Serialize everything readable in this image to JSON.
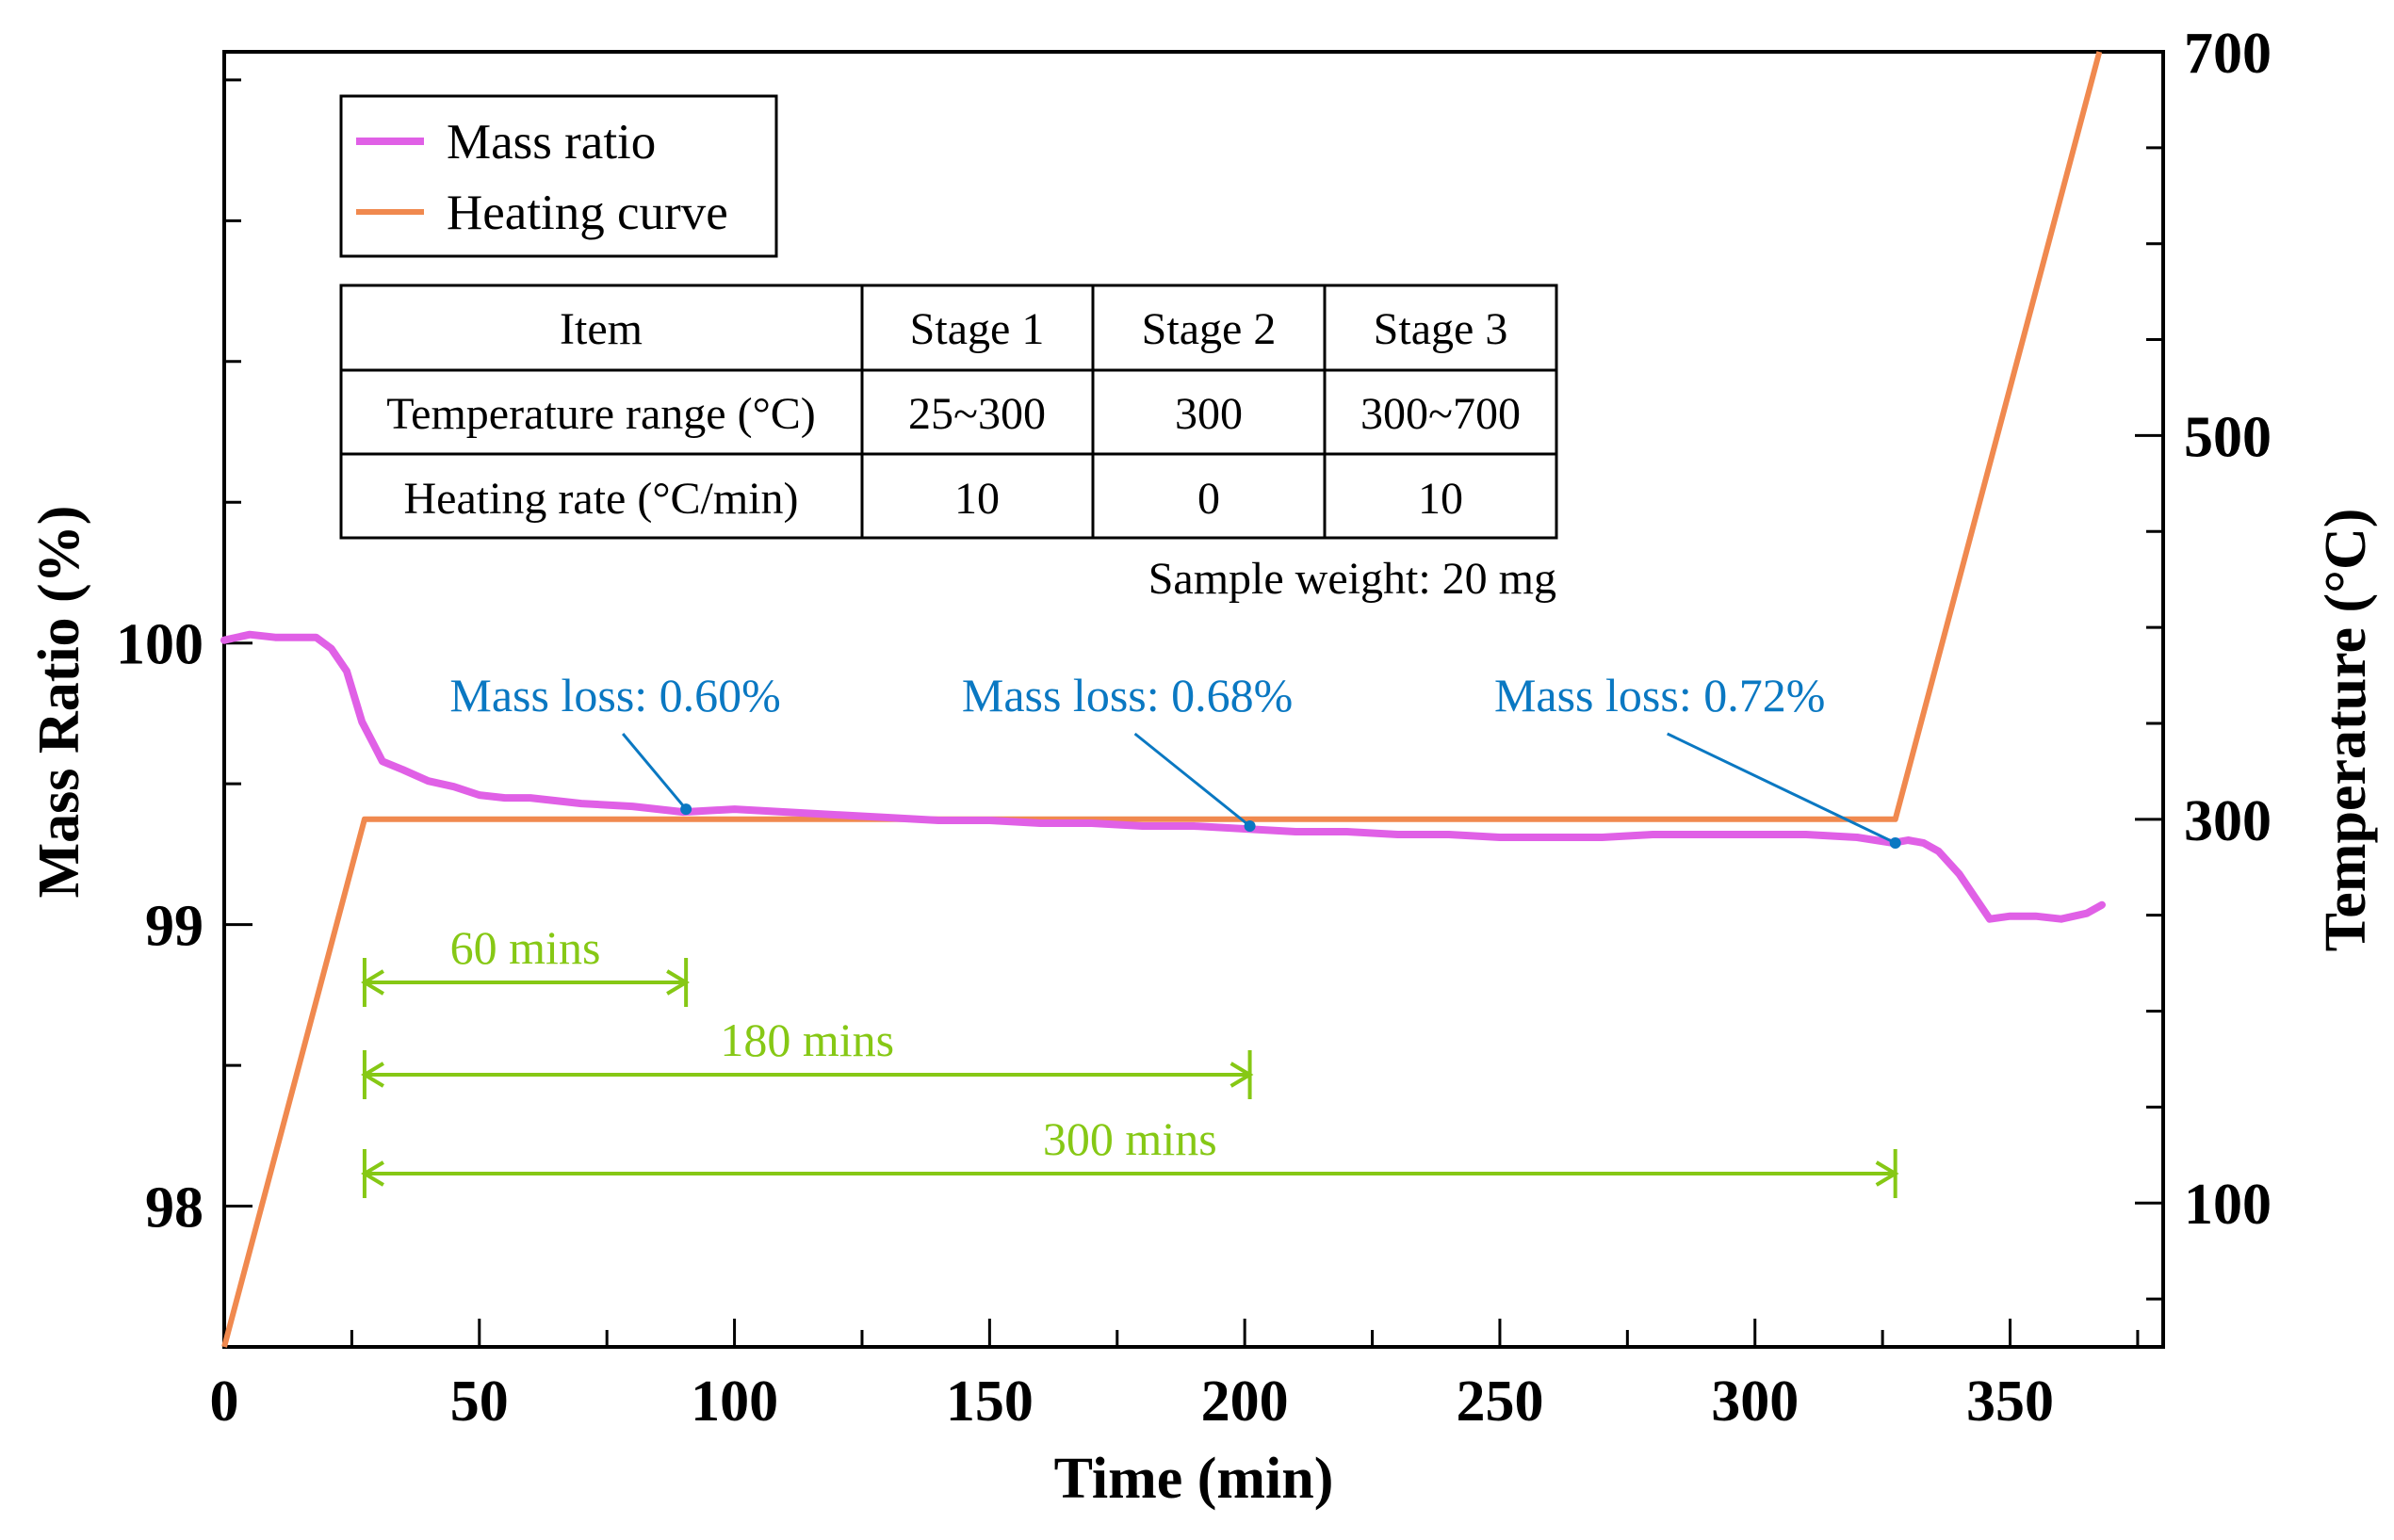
{
  "chart_data": {
    "type": "line",
    "xlabel": "Time (min)",
    "ylabel_left": "Mass Ratio (%)",
    "ylabel_right": "Temperature (°C)",
    "xlim": [
      0,
      380
    ],
    "ylim_left": [
      97.5,
      102.1
    ],
    "ylim_right": [
      25,
      700
    ],
    "x_ticks": [
      0,
      50,
      100,
      150,
      200,
      250,
      300,
      350
    ],
    "x_ticks_minor_step": 25,
    "y_left_ticks": [
      98,
      99,
      100
    ],
    "y_left_ticks_minor_step": 0.5,
    "y_right_ticks": [
      100,
      300,
      500,
      700
    ],
    "y_right_ticks_minor_step": 50,
    "legend": [
      {
        "label": "Mass ratio",
        "color": "#e060e6"
      },
      {
        "label": "Heating curve",
        "color": "#f0894f"
      }
    ],
    "series": [
      {
        "name": "Mass ratio",
        "axis": "left",
        "color": "#e060e6",
        "x": [
          0,
          5,
          10,
          15,
          18,
          21,
          24,
          27,
          29,
          31,
          35,
          40,
          45,
          50,
          55,
          60,
          70,
          80,
          90,
          100,
          110,
          120,
          130,
          140,
          150,
          160,
          170,
          180,
          190,
          200,
          210,
          220,
          230,
          240,
          250,
          260,
          270,
          280,
          290,
          300,
          310,
          320,
          327,
          330,
          333,
          336,
          340,
          343,
          346,
          350,
          355,
          360,
          365,
          368
        ],
        "y": [
          100.01,
          100.03,
          100.02,
          100.02,
          100.02,
          99.98,
          99.9,
          99.72,
          99.65,
          99.58,
          99.55,
          99.51,
          99.49,
          99.46,
          99.45,
          99.45,
          99.43,
          99.42,
          99.4,
          99.41,
          99.4,
          99.39,
          99.38,
          99.37,
          99.37,
          99.36,
          99.36,
          99.35,
          99.35,
          99.34,
          99.33,
          99.33,
          99.32,
          99.32,
          99.31,
          99.31,
          99.31,
          99.32,
          99.32,
          99.32,
          99.32,
          99.31,
          99.29,
          99.3,
          99.29,
          99.26,
          99.18,
          99.1,
          99.02,
          99.03,
          99.03,
          99.02,
          99.04,
          99.07
        ]
      },
      {
        "name": "Heating curve",
        "axis": "right",
        "color": "#f0894f",
        "x": [
          0,
          27.5,
          327.5,
          367.5
        ],
        "y": [
          25,
          300,
          300,
          700
        ]
      }
    ],
    "annotations": [
      {
        "text": "Mass loss: 0.60%",
        "x": 90.5,
        "y": 99.41,
        "color": "#0a78c2"
      },
      {
        "text": "Mass loss: 0.68%",
        "x": 201,
        "y": 99.35,
        "color": "#0a78c2"
      },
      {
        "text": "Mass loss: 0.72%",
        "x": 327.5,
        "y": 99.29,
        "color": "#0a78c2"
      }
    ],
    "intervals": [
      {
        "label": "60 mins",
        "x_start": 27.5,
        "x_end": 90.5,
        "color": "#86c815"
      },
      {
        "label": "180 mins",
        "x_start": 27.5,
        "x_end": 201,
        "color": "#86c815"
      },
      {
        "label": "300 mins",
        "x_start": 27.5,
        "x_end": 327.5,
        "color": "#86c815"
      }
    ],
    "table": {
      "headers": [
        "Item",
        "Stage 1",
        "Stage 2",
        "Stage 3"
      ],
      "rows": [
        [
          "Temperature range (°C)",
          "25~300",
          "300",
          "300~700"
        ],
        [
          "Heating rate (°C/min)",
          "10",
          "0",
          "10"
        ]
      ]
    },
    "note": "Sample weight: 20 mg"
  }
}
